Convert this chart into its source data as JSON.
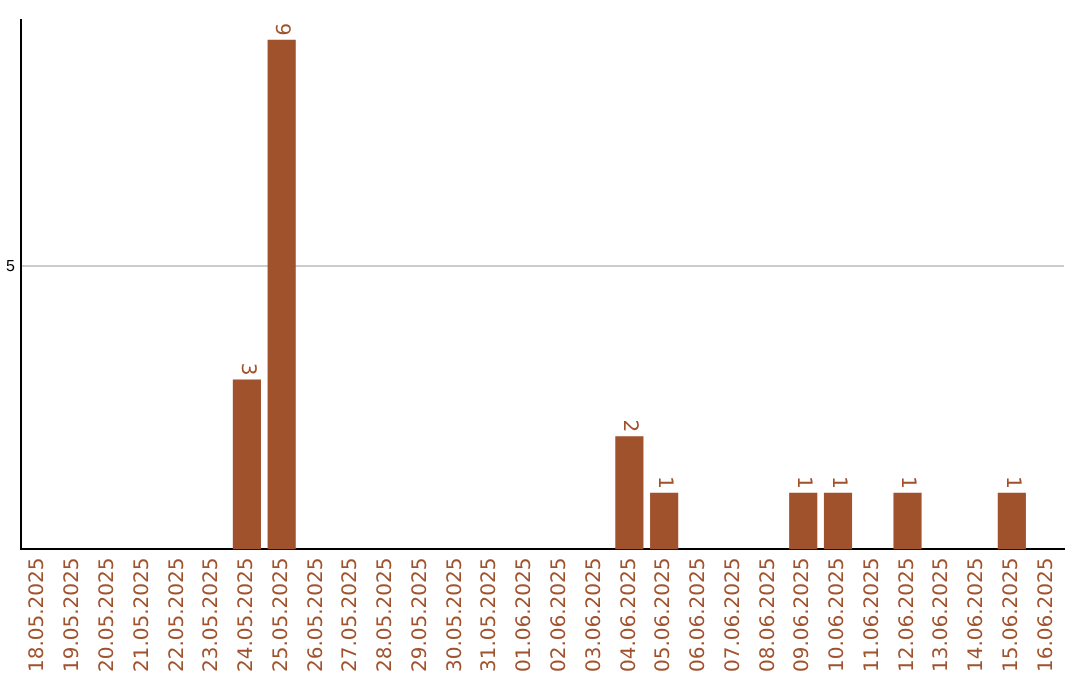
{
  "chart_data": {
    "type": "bar",
    "categories": [
      "18.05.2025",
      "19.05.2025",
      "20.05.2025",
      "21.05.2025",
      "22.05.2025",
      "23.05.2025",
      "24.05.2025",
      "25.05.2025",
      "26.05.2025",
      "27.05.2025",
      "28.05.2025",
      "29.05.2025",
      "30.05.2025",
      "31.05.2025",
      "01.06.2025",
      "02.06.2025",
      "03.06.2025",
      "04.06.2025",
      "05.06.2025",
      "06.06.2025",
      "07.06.2025",
      "08.06.2025",
      "09.06.2025",
      "10.06.2025",
      "11.06.2025",
      "12.06.2025",
      "13.06.2025",
      "14.06.2025",
      "15.06.2025",
      "16.06.2025"
    ],
    "values": [
      0,
      0,
      0,
      0,
      0,
      0,
      3,
      9,
      0,
      0,
      0,
      0,
      0,
      0,
      0,
      0,
      0,
      2,
      1,
      0,
      0,
      0,
      1,
      1,
      0,
      1,
      0,
      0,
      1,
      0
    ],
    "value_labels": [
      null,
      null,
      null,
      null,
      null,
      null,
      "3",
      "9",
      null,
      null,
      null,
      null,
      null,
      null,
      null,
      null,
      null,
      "2",
      "1",
      null,
      null,
      null,
      "1",
      "1",
      null,
      "1",
      null,
      null,
      "1",
      null
    ],
    "color": "#a0522d",
    "ylim": [
      0,
      9.35
    ],
    "yticks": [
      5
    ],
    "grid": "y",
    "legend": false
  }
}
